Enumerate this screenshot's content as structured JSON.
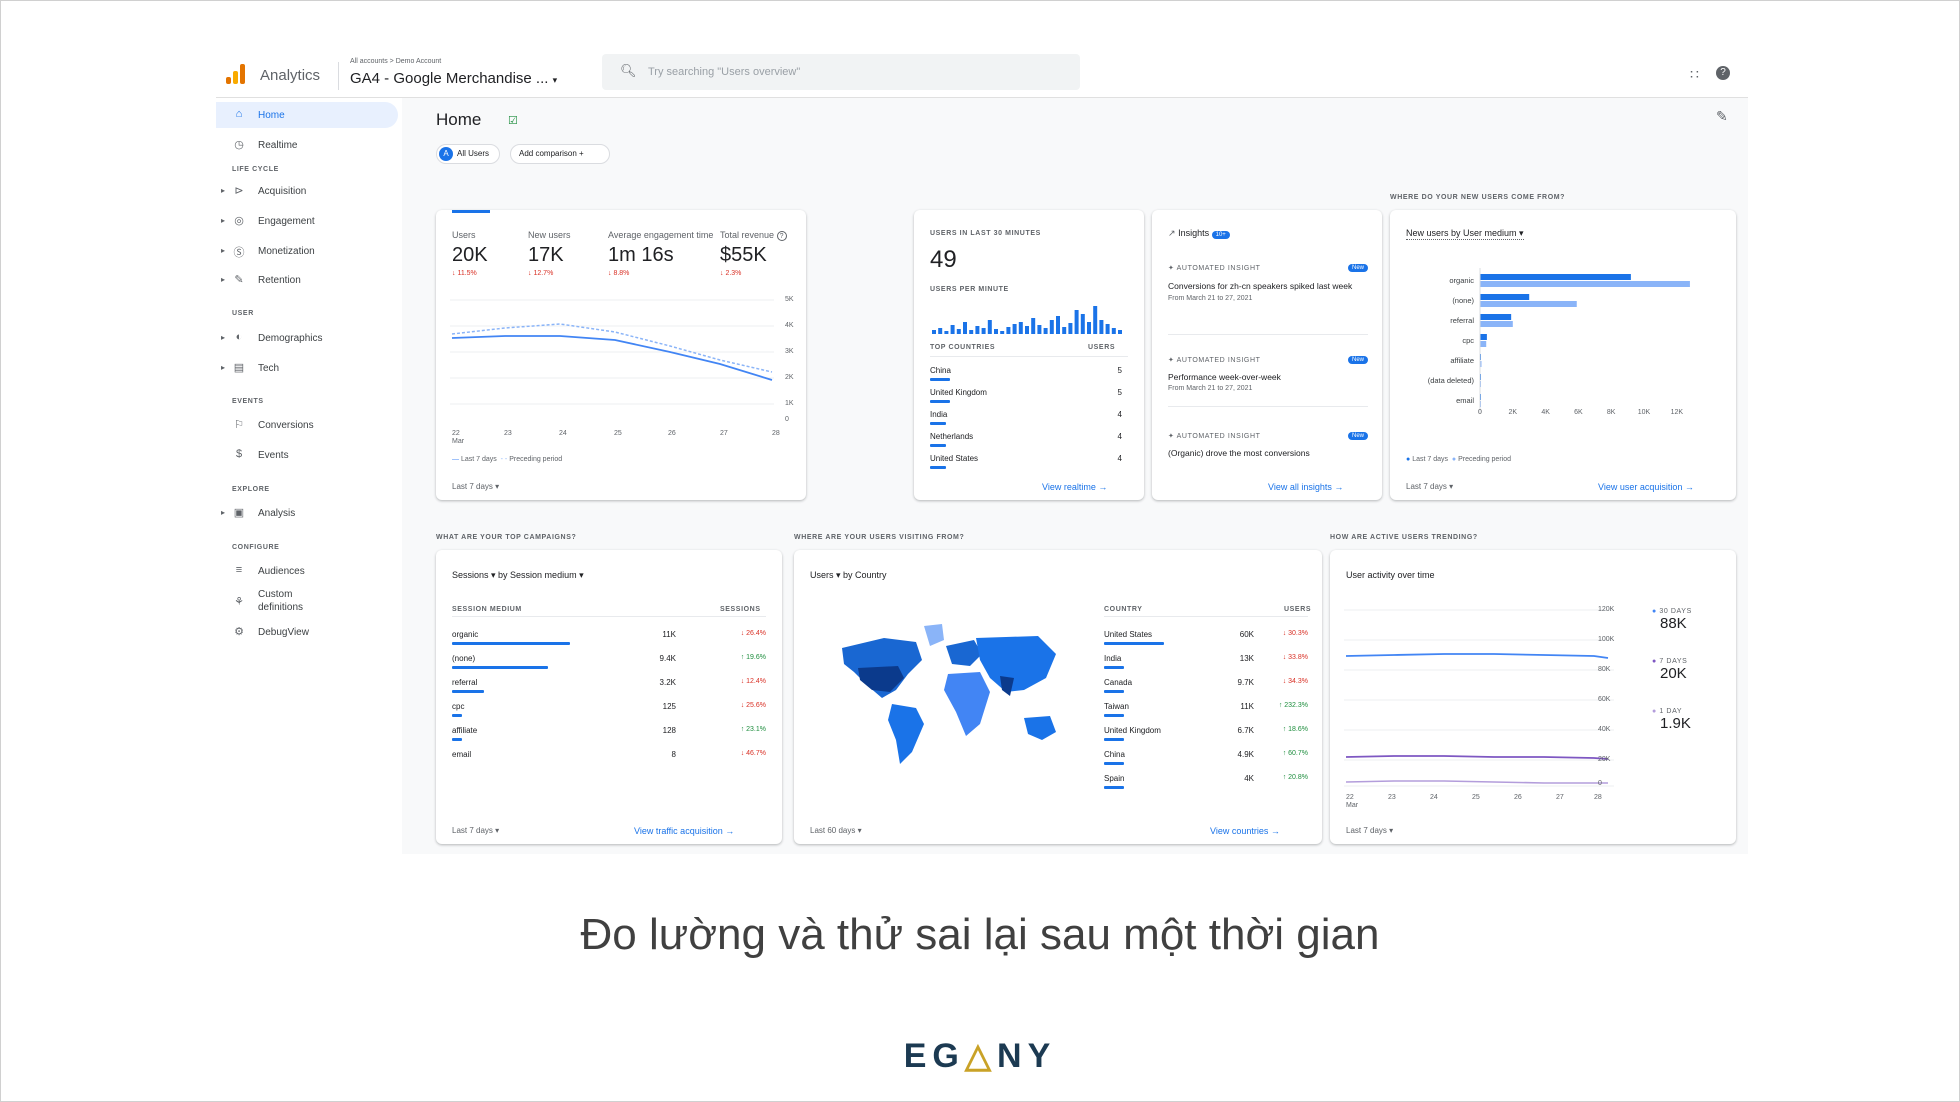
{
  "topbar": {
    "app_name": "Analytics",
    "breadcrumb": "All accounts > Demo Account",
    "property": "GA4 - Google Merchandise ...",
    "search_placeholder": "Try searching \"Users overview\""
  },
  "sidebar": {
    "items": [
      {
        "label": "Home",
        "icon": "home-icon",
        "active": true
      },
      {
        "label": "Realtime",
        "icon": "clock-icon"
      },
      {
        "section": "LIFE CYCLE"
      },
      {
        "label": "Acquisition",
        "icon": "acquisition-icon",
        "expandable": true
      },
      {
        "label": "Engagement",
        "icon": "engagement-icon",
        "expandable": true
      },
      {
        "label": "Monetization",
        "icon": "monetization-icon",
        "expandable": true
      },
      {
        "label": "Retention",
        "icon": "retention-icon",
        "expandable": true
      },
      {
        "section": "USER"
      },
      {
        "label": "Demographics",
        "icon": "globe-icon",
        "expandable": true
      },
      {
        "label": "Tech",
        "icon": "devices-icon",
        "expandable": true
      },
      {
        "section": "EVENTS"
      },
      {
        "label": "Conversions",
        "icon": "flag-icon"
      },
      {
        "label": "Events",
        "icon": "events-icon"
      },
      {
        "section": "EXPLORE"
      },
      {
        "label": "Analysis",
        "icon": "analysis-icon",
        "expandable": true
      },
      {
        "section": "CONFIGURE"
      },
      {
        "label": "Audiences",
        "icon": "audiences-icon"
      },
      {
        "label": "Custom definitions",
        "icon": "custom-definitions-icon"
      },
      {
        "label": "DebugView",
        "icon": "debug-icon"
      }
    ]
  },
  "page": {
    "title": "Home",
    "chip_all_users": "All Users",
    "chip_add_comparison": "Add comparison"
  },
  "overview": {
    "metrics": [
      {
        "label": "Users",
        "value": "20K",
        "change": "11.5%"
      },
      {
        "label": "New users",
        "value": "17K",
        "change": "12.7%"
      },
      {
        "label": "Average engagement time",
        "value": "1m 16s",
        "change": "8.8%"
      },
      {
        "label": "Total revenue",
        "value": "$55K",
        "change": "2.3%"
      }
    ],
    "x_labels": [
      "22\nMar",
      "23",
      "24",
      "25",
      "26",
      "27",
      "28"
    ],
    "y_labels": [
      "5K",
      "4K",
      "3K",
      "2K",
      "1K",
      "0"
    ],
    "legend_current": "Last 7 days",
    "legend_previous": "Preceding period",
    "date_range": "Last 7 days"
  },
  "realtime": {
    "title": "USERS IN LAST 30 MINUTES",
    "value": "49",
    "per_minute_label": "USERS PER MINUTE",
    "col_country": "TOP COUNTRIES",
    "col_users": "USERS",
    "rows": [
      {
        "country": "China",
        "users": "5"
      },
      {
        "country": "United Kingdom",
        "users": "5"
      },
      {
        "country": "India",
        "users": "4"
      },
      {
        "country": "Netherlands",
        "users": "4"
      },
      {
        "country": "United States",
        "users": "4"
      }
    ],
    "link": "View realtime"
  },
  "insights": {
    "title": "Insights",
    "badge": "10+",
    "items": [
      {
        "tag": "AUTOMATED INSIGHT",
        "badge": "New",
        "text": "Conversions for zh-cn speakers spiked last week",
        "date": "From March 21 to 27, 2021"
      },
      {
        "tag": "AUTOMATED INSIGHT",
        "badge": "New",
        "text": "Performance week-over-week",
        "date": "From March 21 to 27, 2021"
      },
      {
        "tag": "AUTOMATED INSIGHT",
        "badge": "New",
        "text": "(Organic) drove the most conversions",
        "date": ""
      }
    ],
    "link": "View all insights"
  },
  "acquisition": {
    "section_title": "WHERE DO YOUR NEW USERS COME FROM?",
    "dropdown": "New users by User medium",
    "categories": [
      "organic",
      "(none)",
      "referral",
      "cpc",
      "affiliate",
      "(data deleted)",
      "email"
    ],
    "x_ticks": [
      "0",
      "2K",
      "4K",
      "6K",
      "8K",
      "10K",
      "12K"
    ],
    "legend_current": "Last 7 days",
    "legend_previous": "Preceding period",
    "date_range": "Last 7 days",
    "link": "View user acquisition"
  },
  "campaigns": {
    "section_title": "WHAT ARE YOUR TOP CAMPAIGNS?",
    "dropdown": "Sessions ▾ by Session medium ▾",
    "col_medium": "SESSION MEDIUM",
    "col_sessions": "SESSIONS",
    "rows": [
      {
        "medium": "organic",
        "sessions": "11K",
        "change": "↓ 26.4%",
        "down": true
      },
      {
        "medium": "(none)",
        "sessions": "9.4K",
        "change": "↑ 19.6%",
        "down": false
      },
      {
        "medium": "referral",
        "sessions": "3.2K",
        "change": "↓ 12.4%",
        "down": true
      },
      {
        "medium": "cpc",
        "sessions": "125",
        "change": "↓ 25.6%",
        "down": true
      },
      {
        "medium": "affiliate",
        "sessions": "128",
        "change": "↑ 23.1%",
        "down": false
      },
      {
        "medium": "email",
        "sessions": "8",
        "change": "↓ 46.7%",
        "down": true
      }
    ],
    "date_range": "Last 7 days",
    "link": "View traffic acquisition"
  },
  "countries": {
    "section_title": "WHERE ARE YOUR USERS VISITING FROM?",
    "dropdown": "Users ▾ by Country",
    "col_country": "COUNTRY",
    "col_users": "USERS",
    "rows": [
      {
        "country": "United States",
        "users": "60K",
        "change": "↓ 30.3%",
        "down": true
      },
      {
        "country": "India",
        "users": "13K",
        "change": "↓ 33.8%",
        "down": true
      },
      {
        "country": "Canada",
        "users": "9.7K",
        "change": "↓ 34.3%",
        "down": true
      },
      {
        "country": "Taiwan",
        "users": "11K",
        "change": "↑ 232.3%",
        "down": false
      },
      {
        "country": "United Kingdom",
        "users": "6.7K",
        "change": "↑ 18.6%",
        "down": false
      },
      {
        "country": "China",
        "users": "4.9K",
        "change": "↑ 60.7%",
        "down": false
      },
      {
        "country": "Spain",
        "users": "4K",
        "change": "↑ 20.8%",
        "down": false
      }
    ],
    "date_range": "Last 60 days",
    "link": "View countries"
  },
  "trending": {
    "section_title": "HOW ARE ACTIVE USERS TRENDING?",
    "title": "User activity over time",
    "y_labels": [
      "120K",
      "100K",
      "80K",
      "60K",
      "40K",
      "20K",
      "0"
    ],
    "x_labels": [
      "22\nMar",
      "23",
      "24",
      "25",
      "26",
      "27",
      "28"
    ],
    "legend": [
      {
        "label": "30 DAYS",
        "value": "88K"
      },
      {
        "label": "7 DAYS",
        "value": "20K"
      },
      {
        "label": "1 DAY",
        "value": "1.9K"
      }
    ],
    "date_range": "Last 7 days"
  },
  "caption": "Đo lường và thử sai lại sau một thời gian",
  "colors": {
    "accent": "#1a73e8",
    "light_accent": "#8ab4f8",
    "down": "#d93025",
    "up": "#1e8e3e",
    "purple": "#7e57c2"
  }
}
